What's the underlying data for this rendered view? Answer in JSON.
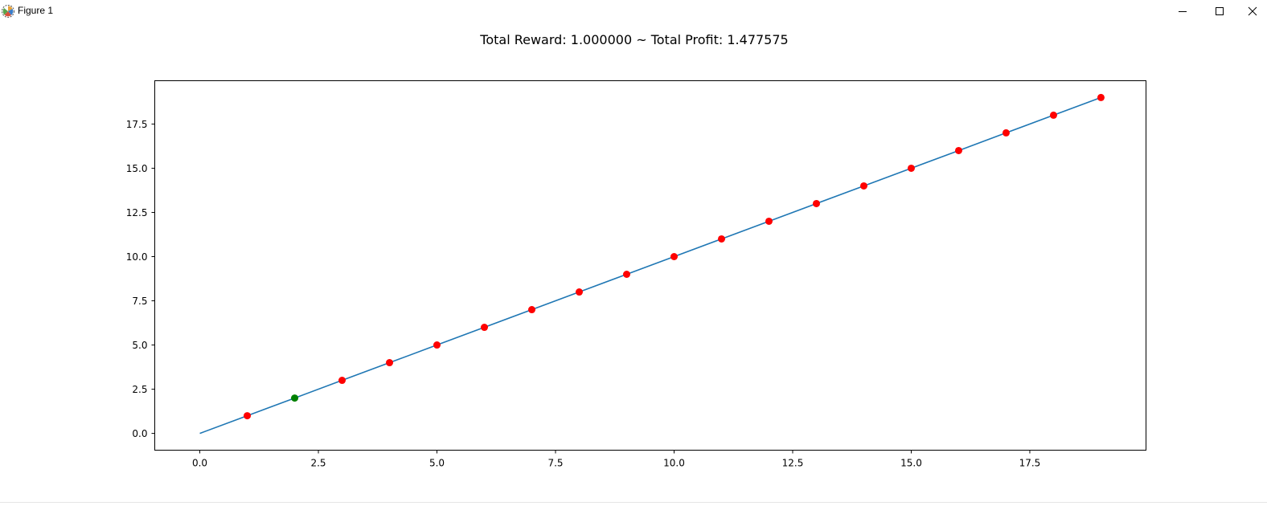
{
  "window": {
    "title": "Figure 1",
    "icons": [
      "matplotlib-app-icon",
      "minimize-icon",
      "maximize-icon",
      "close-icon"
    ]
  },
  "chart_data": {
    "type": "line",
    "title": "Total Reward: 1.000000 ~ Total Profit: 1.477575",
    "xlabel": "",
    "ylabel": "",
    "xlim": [
      -0.95,
      19.95
    ],
    "ylim": [
      -0.95,
      19.95
    ],
    "x_ticks": [
      0.0,
      2.5,
      5.0,
      7.5,
      10.0,
      12.5,
      15.0,
      17.5
    ],
    "x_tick_labels": [
      "0.0",
      "2.5",
      "5.0",
      "7.5",
      "10.0",
      "12.5",
      "15.0",
      "17.5"
    ],
    "y_ticks": [
      0.0,
      2.5,
      5.0,
      7.5,
      10.0,
      12.5,
      15.0,
      17.5
    ],
    "y_tick_labels": [
      "0.0",
      "2.5",
      "5.0",
      "7.5",
      "10.0",
      "12.5",
      "15.0",
      "17.5"
    ],
    "grid": false,
    "line": {
      "color": "#1f77b4",
      "x": [
        0,
        1,
        2,
        3,
        4,
        5,
        6,
        7,
        8,
        9,
        10,
        11,
        12,
        13,
        14,
        15,
        16,
        17,
        18,
        19
      ],
      "y": [
        0,
        1,
        2,
        3,
        4,
        5,
        6,
        7,
        8,
        9,
        10,
        11,
        12,
        13,
        14,
        15,
        16,
        17,
        18,
        19
      ]
    },
    "scatter_series": [
      {
        "color": "#ff0000",
        "x": [
          1,
          3,
          4,
          5,
          6,
          7,
          8,
          9,
          10,
          11,
          12,
          13,
          14,
          15,
          16,
          17,
          18,
          19
        ],
        "y": [
          1,
          3,
          4,
          5,
          6,
          7,
          8,
          9,
          10,
          11,
          12,
          13,
          14,
          15,
          16,
          17,
          18,
          19
        ]
      },
      {
        "color": "#008000",
        "x": [
          2
        ],
        "y": [
          2
        ]
      }
    ]
  }
}
